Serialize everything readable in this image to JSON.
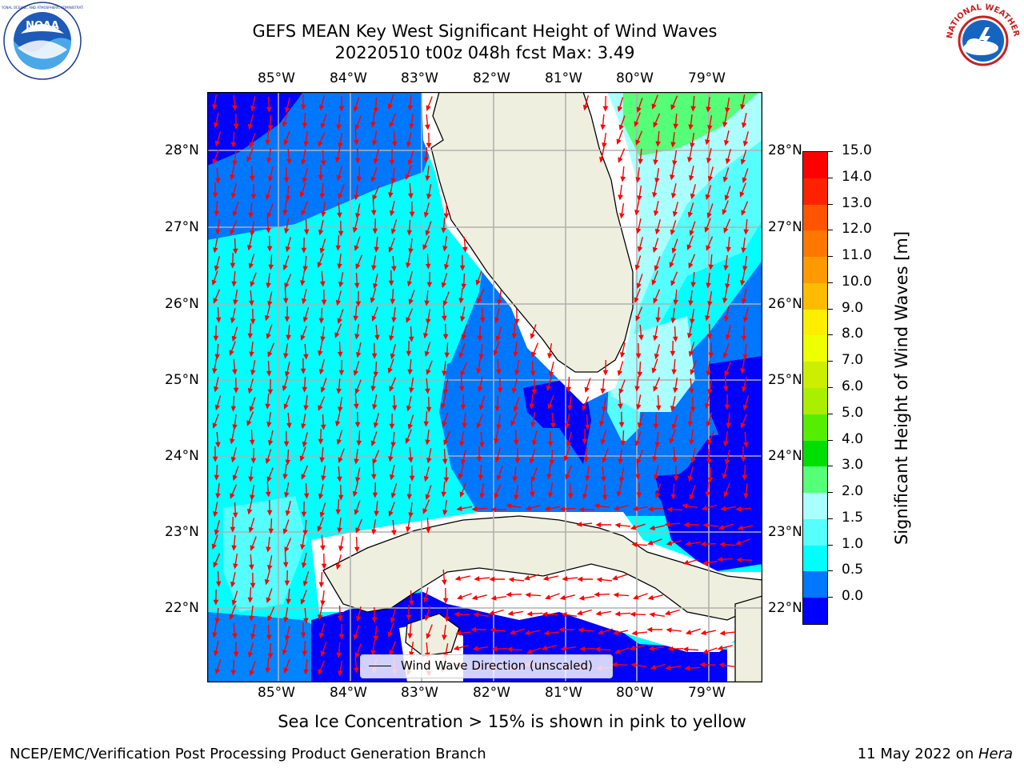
{
  "title": {
    "line1": "GEFS MEAN Key West Significant Height of Wind Waves",
    "line2": "20220510 t00z 048h fcst   Max: 3.49"
  },
  "logos": {
    "left": {
      "name": "NOAA",
      "ring_text": "NATIONAL OCEANIC AND ATMOSPHERIC ADMINISTRATION · U.S. DEPARTMENT OF COMMERCE"
    },
    "right": {
      "name": "NATIONAL WEATHER SERVICE"
    }
  },
  "axes": {
    "longitude_labels": [
      "85°W",
      "84°W",
      "83°W",
      "82°W",
      "81°W",
      "80°W",
      "79°W"
    ],
    "latitude_labels": [
      "28°N",
      "27°N",
      "26°N",
      "25°N",
      "24°N",
      "23°N",
      "22°N"
    ],
    "gridlines": true
  },
  "legend": {
    "label": "Wind Wave Direction (unscaled)",
    "placement": "lower-center"
  },
  "colorbar": {
    "title": "Significant Height of Wind Waves [m]",
    "tick_labels": [
      "15.0",
      "14.0",
      "13.0",
      "12.0",
      "11.0",
      "10.0",
      "9.0",
      "8.0",
      "7.0",
      "6.0",
      "5.0",
      "4.0",
      "3.0",
      "2.0",
      "1.5",
      "1.0",
      "0.5",
      "0.0"
    ],
    "colors": [
      "#ff0000",
      "#ff2200",
      "#ff5500",
      "#ff7700",
      "#ff9900",
      "#ffbb00",
      "#ffee00",
      "#eeff00",
      "#ccee00",
      "#aaee00",
      "#55ee00",
      "#00dd00",
      "#55ff77",
      "#aaffff",
      "#55ffff",
      "#00ffff",
      "#0077ff",
      "#0000ff"
    ]
  },
  "caption": "Sea Ice Concentration > 15% is shown in pink to yellow",
  "footer": {
    "left": "NCEP/EMC/Verification Post Processing Product Generation Branch",
    "right_date": "11 May 2022 on ",
    "right_machine": "Hera"
  },
  "map_colors": {
    "land": "#efefdf",
    "coast": "#000000",
    "arrows": "#ff0000",
    "grid": "#b0b0b0",
    "wave_0_0_5": "#0000ff",
    "wave_0_5_1": "#0077ff",
    "wave_1_1_5": "#00ffff",
    "wave_1_5_2": "#55ffff",
    "wave_2_3": "#aaffff",
    "wave_3_4": "#55ff77"
  }
}
